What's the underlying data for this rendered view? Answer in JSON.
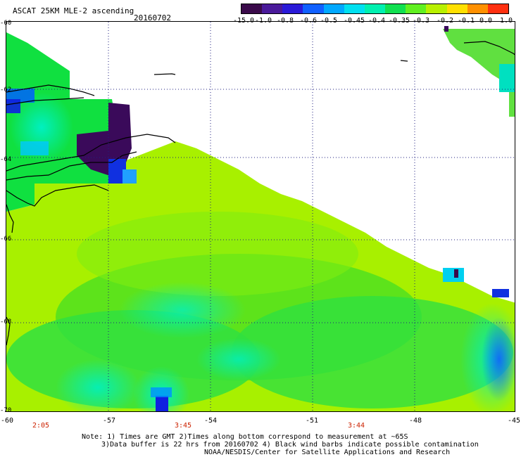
{
  "header": {
    "title": "ASCAT 25KM MLE-2 ascending",
    "date": "20160702"
  },
  "colorbar": {
    "labels": [
      "-15.0",
      "-1.0",
      "-0.8",
      "-0.6",
      "-0.5",
      "-0.45",
      "-0.4",
      "-0.35",
      "-0.3",
      "-0.2",
      "-0.1",
      "0.0",
      "1.0"
    ],
    "colors": [
      "#3a0a4a",
      "#4a1a9a",
      "#2a1ad8",
      "#1060ff",
      "#00a8ff",
      "#00e0f0",
      "#00f0b0",
      "#10e050",
      "#60f020",
      "#b8f000",
      "#ffe000",
      "#ff9000",
      "#ff3010"
    ]
  },
  "map": {
    "x_ticks": [
      "-60",
      "-57",
      "-54",
      "-51",
      "-48",
      "-45"
    ],
    "y_ticks": [
      "-60",
      "-62",
      "-64",
      "-66",
      "-68",
      "-70"
    ],
    "times": [
      "2:05",
      "3:45",
      "3:44"
    ]
  },
  "footer": {
    "note1": "Note: 1) Times are GMT 2)Times along bottom correspond to measurement at ~65S",
    "note2": "3)Data buffer is 22 hrs from 20160702 4) Black wind barbs indicate possible contamination",
    "credit": "NOAA/NESDIS/Center for Satellite Applications and Research"
  }
}
